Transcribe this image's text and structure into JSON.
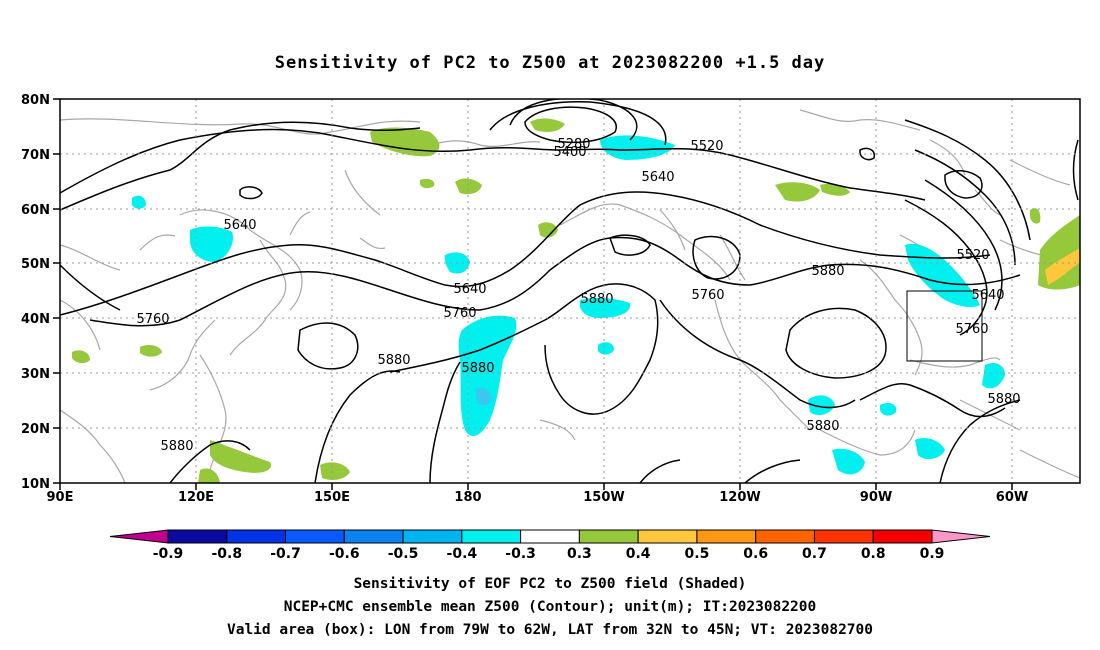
{
  "title": "Sensitivity of PC2 to Z500 at 2023082200 +1.5 day",
  "lat_labels": [
    "80N",
    "70N",
    "60N",
    "50N",
    "40N",
    "30N",
    "20N",
    "10N"
  ],
  "lon_labels": [
    "90E",
    "120E",
    "150E",
    "180",
    "150W",
    "120W",
    "90W",
    "60W"
  ],
  "contour_labels": [
    {
      "text": "5280"
    },
    {
      "text": "5400"
    },
    {
      "text": "5520"
    },
    {
      "text": "5520"
    },
    {
      "text": "5640"
    },
    {
      "text": "5640"
    },
    {
      "text": "5640"
    },
    {
      "text": "5640"
    },
    {
      "text": "5760"
    },
    {
      "text": "5760"
    },
    {
      "text": "5760"
    },
    {
      "text": "5760"
    },
    {
      "text": "5880"
    },
    {
      "text": "5880"
    },
    {
      "text": "5880"
    },
    {
      "text": "5880"
    },
    {
      "text": "5880"
    },
    {
      "text": "5880"
    },
    {
      "text": "5880"
    }
  ],
  "colorbar": {
    "colors": [
      "#c0008c",
      "#0a0aa0",
      "#0032e6",
      "#0a5aff",
      "#0a82f0",
      "#00b4f0",
      "#00f0f0",
      "#ffffff",
      "#96c83c",
      "#ffc83c",
      "#ff9614",
      "#ff6400",
      "#ff3200",
      "#f50000",
      "#ff96c8"
    ],
    "labels": [
      "-0.9",
      "-0.8",
      "-0.7",
      "-0.6",
      "-0.5",
      "-0.4",
      "-0.3",
      "0.3",
      "0.4",
      "0.5",
      "0.6",
      "0.7",
      "0.8",
      "0.9"
    ]
  },
  "footer": {
    "line1": "Sensitivity of EOF PC2 to Z500 field (Shaded)",
    "line2": "NCEP+CMC ensemble mean Z500 (Contour); unit(m); IT:2023082200",
    "line3": "Valid area (box): LON from 79W to 62W, LAT from 32N to 45N; VT: 2023082700"
  },
  "colors": {
    "cyan": "#00f0f0",
    "green": "#96c83c",
    "orange": "#ffc83c",
    "coast": "#a8a8a8"
  }
}
